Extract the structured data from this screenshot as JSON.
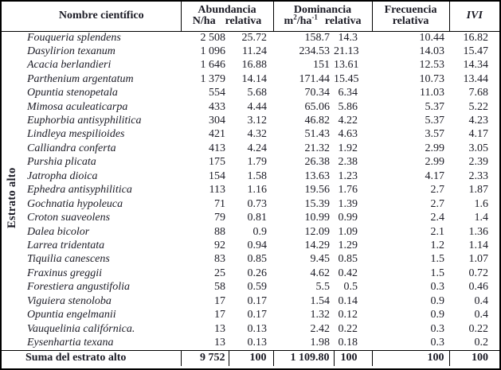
{
  "table": {
    "group_label": "Estrato alto",
    "headers": {
      "name": "Nombre científico",
      "abundancia_title": "Abundancia",
      "abundancia_sub1": "N/ha",
      "abundancia_sub2": "relativa",
      "dominancia_title": "Dominancia",
      "dominancia_unit_base": "m",
      "dominancia_unit_sup1": "2",
      "dominancia_unit_mid": "/ha",
      "dominancia_unit_sup2": "-1",
      "dominancia_sub2": "relativa",
      "frecuencia_title": "Frecuencia",
      "frecuencia_sub": "relativa",
      "ivi": "IVI"
    },
    "rows": [
      [
        "Fouqueria splendens",
        "2 508",
        "25.72",
        "158.7",
        "14.3",
        "10.44",
        "16.82"
      ],
      [
        "Dasylirion texanum",
        "1 096",
        "11.24",
        "234.53",
        "21.13",
        "14.03",
        "15.47"
      ],
      [
        "Acacia berlandieri",
        "1 646",
        "16.88",
        "151",
        "13.61",
        "12.53",
        "14.34"
      ],
      [
        "Parthenium argentatum",
        "1 379",
        "14.14",
        "171.44",
        "15.45",
        "10.73",
        "13.44"
      ],
      [
        "Opuntia stenopetala",
        "554",
        "5.68",
        "70.34",
        "6.34",
        "11.03",
        "7.68"
      ],
      [
        "Mimosa aculeaticarpa",
        "433",
        "4.44",
        "65.06",
        "5.86",
        "5.37",
        "5.22"
      ],
      [
        "Euphorbia antisyphilitica",
        "304",
        "3.12",
        "46.82",
        "4.22",
        "5.37",
        "4.23"
      ],
      [
        "Lindleya mespilioides",
        "421",
        "4.32",
        "51.43",
        "4.63",
        "3.57",
        "4.17"
      ],
      [
        "Calliandra conferta",
        "413",
        "4.24",
        "21.32",
        "1.92",
        "2.99",
        "3.05"
      ],
      [
        "Purshia plicata",
        "175",
        "1.79",
        "26.38",
        "2.38",
        "2.99",
        "2.39"
      ],
      [
        "Jatropha dioica",
        "154",
        "1.58",
        "13.63",
        "1.23",
        "4.17",
        "2.33"
      ],
      [
        "Ephedra antisyphilitica",
        "113",
        "1.16",
        "19.56",
        "1.76",
        "2.7",
        "1.87"
      ],
      [
        "Gochnatia hypoleuca",
        "71",
        "0.73",
        "15.39",
        "1.39",
        "2.7",
        "1.6"
      ],
      [
        "Croton suaveolens",
        "79",
        "0.81",
        "10.99",
        "0.99",
        "2.4",
        "1.4"
      ],
      [
        "Dalea bicolor",
        "88",
        "0.9",
        "12.09",
        "1.09",
        "2.1",
        "1.36"
      ],
      [
        "Larrea tridentata",
        "92",
        "0.94",
        "14.29",
        "1.29",
        "1.2",
        "1.14"
      ],
      [
        "Tiquilia  canescens",
        "83",
        "0.85",
        "9.45",
        "0.85",
        "1.5",
        "1.07"
      ],
      [
        "Fraxinus greggii",
        "25",
        "0.26",
        "4.62",
        "0.42",
        "1.5",
        "0.72"
      ],
      [
        "Forestiera angustifolia",
        "58",
        "0.59",
        "5.5",
        "0.5",
        "0.3",
        "0.46"
      ],
      [
        "Viguiera stenoloba",
        "17",
        "0.17",
        "1.54",
        "0.14",
        "0.9",
        "0.4"
      ],
      [
        "Opuntia engelmanii",
        "17",
        "0.17",
        "1.32",
        "0.12",
        "0.9",
        "0.4"
      ],
      [
        "Vauquelinia califórnica.",
        "13",
        "0.13",
        "2.42",
        "0.22",
        "0.3",
        "0.22"
      ],
      [
        "Eysenhartia texana",
        "13",
        "0.13",
        "1.98",
        "0.18",
        "0.3",
        "0.2"
      ]
    ],
    "total": [
      "Suma del estrato alto",
      "9 752",
      "100",
      "1 109.80",
      "100",
      "100",
      "100"
    ]
  }
}
